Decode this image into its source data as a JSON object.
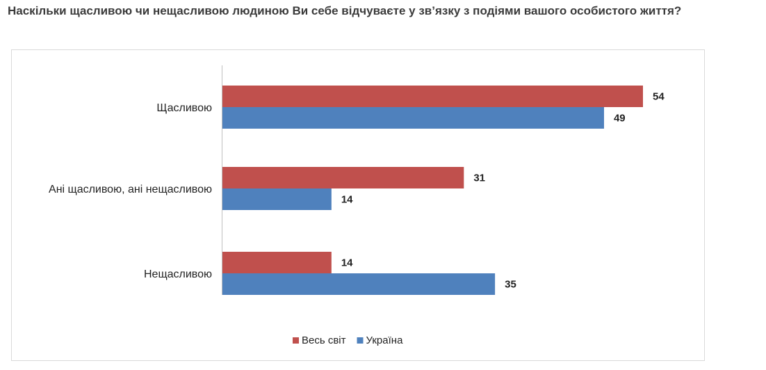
{
  "page": {
    "title": "Наскільки щасливою чи нещасливою людиною Ви себе відчуваєте у зв’язку з подіями вашого особистого життя?"
  },
  "chart_data": {
    "type": "bar",
    "orientation": "horizontal",
    "categories": [
      "Щасливою",
      "Ані щасливою, ані нещасливою",
      "Нещасливою"
    ],
    "series": [
      {
        "name": "Весь світ",
        "color": "#c0504d",
        "values": [
          54,
          31,
          14
        ]
      },
      {
        "name": "Україна",
        "color": "#4f81bd",
        "values": [
          49,
          14,
          35
        ]
      }
    ],
    "xlim": [
      0,
      54
    ],
    "grid": false,
    "legend_position": "bottom",
    "data_labels": true
  }
}
